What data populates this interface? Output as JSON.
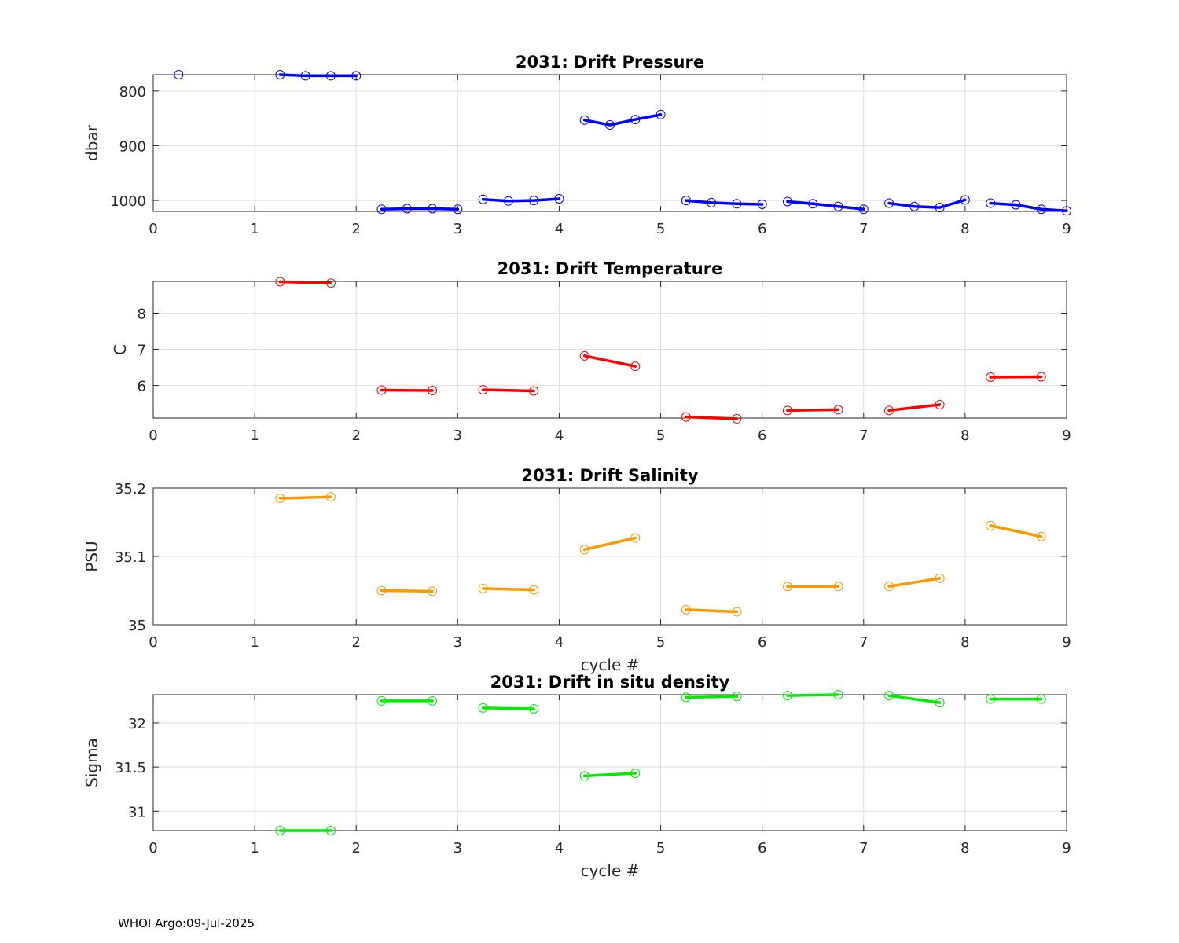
{
  "footer": "WHOI Argo:09-Jul-2025",
  "chart_data": [
    {
      "type": "line",
      "title": "2031: Drift Pressure",
      "xlabel": "",
      "ylabel": "dbar",
      "xlim": [
        0,
        9
      ],
      "ylim": [
        770,
        1020
      ],
      "y_reversed": true,
      "xticks": [
        0,
        1,
        2,
        3,
        4,
        5,
        6,
        7,
        8,
        9
      ],
      "yticks": [
        800,
        900,
        1000
      ],
      "ytick_labels": [
        "800",
        "900",
        "1000"
      ],
      "color": "#0000ff",
      "segments": [
        {
          "x": [
            0.25
          ],
          "y": [
            770
          ]
        },
        {
          "x": [
            1.25,
            1.5,
            1.75,
            2.0
          ],
          "y": [
            770,
            772,
            772,
            772
          ]
        },
        {
          "x": [
            2.25,
            2.5,
            2.75,
            3.0
          ],
          "y": [
            1016,
            1015,
            1015,
            1016
          ]
        },
        {
          "x": [
            3.25,
            3.5,
            3.75,
            4.0
          ],
          "y": [
            998,
            1001,
            1000,
            997
          ]
        },
        {
          "x": [
            4.25,
            4.5,
            4.75,
            5.0
          ],
          "y": [
            853,
            862,
            852,
            843
          ]
        },
        {
          "x": [
            5.25,
            5.5,
            5.75,
            6.0
          ],
          "y": [
            1000,
            1004,
            1006,
            1007
          ]
        },
        {
          "x": [
            6.25,
            6.5,
            6.75,
            7.0
          ],
          "y": [
            1002,
            1006,
            1011,
            1016
          ]
        },
        {
          "x": [
            7.25,
            7.5,
            7.75,
            8.0
          ],
          "y": [
            1005,
            1011,
            1013,
            999
          ]
        },
        {
          "x": [
            8.25,
            8.5,
            8.75,
            9.0
          ],
          "y": [
            1005,
            1008,
            1016,
            1019
          ]
        }
      ]
    },
    {
      "type": "line",
      "title": "2031: Drift Temperature",
      "xlabel": "",
      "ylabel": "C",
      "xlim": [
        0,
        9
      ],
      "ylim": [
        5.1,
        8.88
      ],
      "y_reversed": false,
      "xticks": [
        0,
        1,
        2,
        3,
        4,
        5,
        6,
        7,
        8,
        9
      ],
      "yticks": [
        6,
        7,
        8
      ],
      "ytick_labels": [
        "6",
        "7",
        "8"
      ],
      "color": "#ff0000",
      "segments": [
        {
          "x": [
            1.25,
            1.75
          ],
          "y": [
            8.87,
            8.83
          ]
        },
        {
          "x": [
            2.25,
            2.75
          ],
          "y": [
            5.87,
            5.86
          ]
        },
        {
          "x": [
            3.25,
            3.75
          ],
          "y": [
            5.88,
            5.85
          ]
        },
        {
          "x": [
            4.25,
            4.75
          ],
          "y": [
            6.82,
            6.53
          ]
        },
        {
          "x": [
            5.25,
            5.75
          ],
          "y": [
            5.13,
            5.08
          ]
        },
        {
          "x": [
            6.25,
            6.75
          ],
          "y": [
            5.31,
            5.33
          ]
        },
        {
          "x": [
            7.25,
            7.75
          ],
          "y": [
            5.31,
            5.47
          ]
        },
        {
          "x": [
            8.25,
            8.75
          ],
          "y": [
            6.23,
            6.24
          ]
        }
      ]
    },
    {
      "type": "line",
      "title": "2031: Drift Salinity",
      "xlabel": "cycle #",
      "ylabel": "PSU",
      "xlim": [
        0,
        9
      ],
      "ylim": [
        35.0,
        35.2
      ],
      "y_reversed": false,
      "xticks": [
        0,
        1,
        2,
        3,
        4,
        5,
        6,
        7,
        8,
        9
      ],
      "yticks": [
        35.0,
        35.1,
        35.2
      ],
      "ytick_labels": [
        "35",
        "35.1",
        "35.2"
      ],
      "color": "#ff9900",
      "segments": [
        {
          "x": [
            1.25,
            1.75
          ],
          "y": [
            35.185,
            35.187
          ]
        },
        {
          "x": [
            2.25,
            2.75
          ],
          "y": [
            35.05,
            35.049
          ]
        },
        {
          "x": [
            3.25,
            3.75
          ],
          "y": [
            35.053,
            35.051
          ]
        },
        {
          "x": [
            4.25,
            4.75
          ],
          "y": [
            35.11,
            35.127
          ]
        },
        {
          "x": [
            5.25,
            5.75
          ],
          "y": [
            35.022,
            35.019
          ]
        },
        {
          "x": [
            6.25,
            6.75
          ],
          "y": [
            35.056,
            35.056
          ]
        },
        {
          "x": [
            7.25,
            7.75
          ],
          "y": [
            35.056,
            35.068
          ]
        },
        {
          "x": [
            8.25,
            8.75
          ],
          "y": [
            35.145,
            35.129
          ]
        }
      ]
    },
    {
      "type": "line",
      "title": "2031: Drift in situ density",
      "xlabel": "cycle #",
      "ylabel": "Sigma",
      "xlim": [
        0,
        9
      ],
      "ylim": [
        30.78,
        32.32
      ],
      "y_reversed": false,
      "xticks": [
        0,
        1,
        2,
        3,
        4,
        5,
        6,
        7,
        8,
        9
      ],
      "yticks": [
        31,
        31.5,
        32
      ],
      "ytick_labels": [
        "31",
        "31.5",
        "32"
      ],
      "color": "#00ee00",
      "segments": [
        {
          "x": [
            1.25,
            1.75
          ],
          "y": [
            30.78,
            30.78
          ]
        },
        {
          "x": [
            2.25,
            2.75
          ],
          "y": [
            32.25,
            32.25
          ]
        },
        {
          "x": [
            3.25,
            3.75
          ],
          "y": [
            32.17,
            32.16
          ]
        },
        {
          "x": [
            4.25,
            4.75
          ],
          "y": [
            31.4,
            31.43
          ]
        },
        {
          "x": [
            5.25,
            5.75
          ],
          "y": [
            32.29,
            32.3
          ]
        },
        {
          "x": [
            6.25,
            6.75
          ],
          "y": [
            32.31,
            32.32
          ]
        },
        {
          "x": [
            7.25,
            7.75
          ],
          "y": [
            32.31,
            32.23
          ]
        },
        {
          "x": [
            8.25,
            8.75
          ],
          "y": [
            32.27,
            32.27
          ]
        }
      ]
    }
  ]
}
